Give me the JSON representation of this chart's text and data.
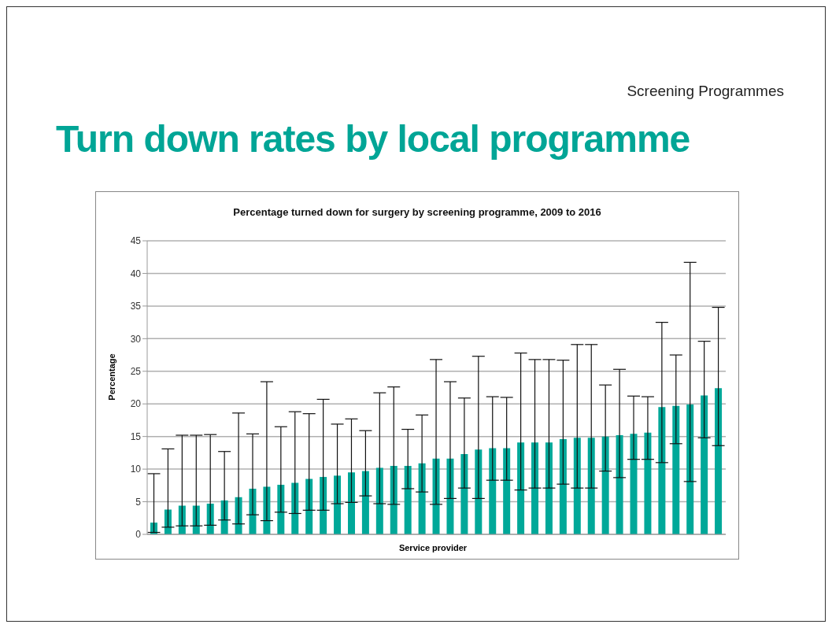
{
  "chart_data": {
    "type": "bar",
    "title": "Turn down rates by local programme",
    "subtitle": "Percentage turned down for surgery by screening programme, 2009 to 2016",
    "xlabel": "Service provider",
    "ylabel": "Percentage",
    "annotations": [
      "Screening Programmes"
    ],
    "categories": [
      null,
      null,
      null,
      null,
      null,
      null,
      null,
      null,
      null,
      null,
      null,
      null,
      null,
      null,
      null,
      null,
      null,
      null,
      null,
      null,
      null,
      null,
      null,
      null,
      null,
      null,
      null,
      null,
      null,
      null,
      null,
      null,
      null,
      null,
      null,
      null,
      null,
      null,
      null,
      null,
      null
    ],
    "values": [
      1.8,
      3.8,
      4.4,
      4.4,
      4.7,
      5.2,
      5.7,
      7.0,
      7.3,
      7.6,
      7.9,
      8.5,
      8.8,
      9.0,
      9.5,
      9.7,
      10.2,
      10.5,
      10.5,
      10.9,
      11.6,
      11.6,
      12.3,
      13.0,
      13.2,
      13.2,
      14.1,
      14.1,
      14.1,
      14.6,
      14.8,
      14.8,
      15.0,
      15.2,
      15.4,
      15.6,
      19.5,
      19.7,
      19.9,
      21.3,
      22.4
    ],
    "errors": [
      [
        0.3,
        9.3
      ],
      [
        1.1,
        13.1
      ],
      [
        1.3,
        15.2
      ],
      [
        1.3,
        15.2
      ],
      [
        1.4,
        15.3
      ],
      [
        2.2,
        12.7
      ],
      [
        1.6,
        18.6
      ],
      [
        3.0,
        15.4
      ],
      [
        2.1,
        23.4
      ],
      [
        3.4,
        16.5
      ],
      [
        3.2,
        18.8
      ],
      [
        3.7,
        18.5
      ],
      [
        3.7,
        20.7
      ],
      [
        4.7,
        16.9
      ],
      [
        4.9,
        17.7
      ],
      [
        5.9,
        15.9
      ],
      [
        4.7,
        21.7
      ],
      [
        4.6,
        22.6
      ],
      [
        7.0,
        16.1
      ],
      [
        6.5,
        18.3
      ],
      [
        4.6,
        26.8
      ],
      [
        5.5,
        23.4
      ],
      [
        7.1,
        20.9
      ],
      [
        5.5,
        27.3
      ],
      [
        8.3,
        21.1
      ],
      [
        8.3,
        21.0
      ],
      [
        6.8,
        27.8
      ],
      [
        7.1,
        26.8
      ],
      [
        7.1,
        26.8
      ],
      [
        7.7,
        26.7
      ],
      [
        7.1,
        29.1
      ],
      [
        7.1,
        29.1
      ],
      [
        9.7,
        22.9
      ],
      [
        8.7,
        25.3
      ],
      [
        11.5,
        21.2
      ],
      [
        11.5,
        21.1
      ],
      [
        11.0,
        32.5
      ],
      [
        13.9,
        27.5
      ],
      [
        8.1,
        41.7
      ],
      [
        14.8,
        29.6
      ],
      [
        13.6,
        34.8
      ]
    ],
    "color": "#00a899",
    "ylim": [
      0,
      45
    ],
    "yticks": [
      0,
      5,
      10,
      15,
      20,
      25,
      30,
      35,
      40,
      45
    ],
    "grid": "y",
    "legend": false
  }
}
